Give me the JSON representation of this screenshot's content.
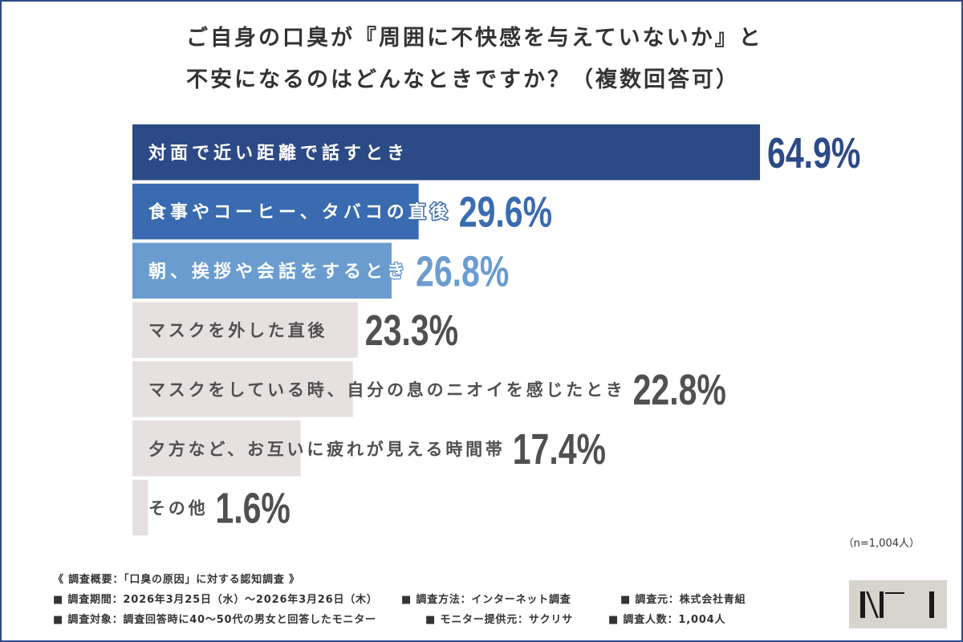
{
  "chart_data": {
    "type": "bar",
    "horizontal": true,
    "title": [
      "ご自身の口臭が『周囲に不快感を与えていないか』と",
      "不安になるのはどんなときですか？（複数回答可）"
    ],
    "categories": [
      "対面で近い距離で話すとき",
      "食事やコーヒー、タバコの直後",
      "朝、挨拶や会話をするとき",
      "マスクを外した直後",
      "マスクをしている時、自分の息のニオイを感じたとき",
      "夕方など、お互いに疲れが見える時間帯",
      "その他"
    ],
    "values": [
      64.9,
      29.6,
      26.8,
      23.3,
      22.8,
      17.4,
      1.6
    ],
    "unit": "%",
    "labels_inside_bars": true,
    "axes_visible": false,
    "grid": false,
    "legend_visible": false,
    "bar_colors": [
      "#2b4a86",
      "#3a6bb0",
      "#6a9cd0",
      "#e6e1e0",
      "#e6e1e0",
      "#e6e1e0",
      "#e6e1e0"
    ],
    "label_colors": [
      "#ffffff",
      "#ffffff",
      "#ffffff",
      "#505050",
      "#505050",
      "#505050",
      "#505050"
    ],
    "value_colors": [
      "#2b4a86",
      "#3a6bb0",
      "#6a9cd0",
      "#505050",
      "#505050",
      "#505050",
      "#505050"
    ]
  },
  "note": "（n=1,004人）",
  "survey": {
    "heading": "《 調査概要：「口臭の原因」に対する認知調査 》",
    "items": [
      "■ 調査期間：2026年3月25日（水）〜2026年3月26日（木）",
      "■ 調査方法：インターネット調査",
      "■ 調査元：株式会社青組",
      "■ 調査対象：調査回答時に40〜50代の男女と回答したモニター",
      "■ モニター提供元：サクリサ",
      "■ 調査人数：1,004人"
    ]
  },
  "colors": {
    "frame": "#2c4a86",
    "title_text": "#333333",
    "logo_background": "#d6d4cd",
    "logo_mark": "#1a1a1a"
  }
}
